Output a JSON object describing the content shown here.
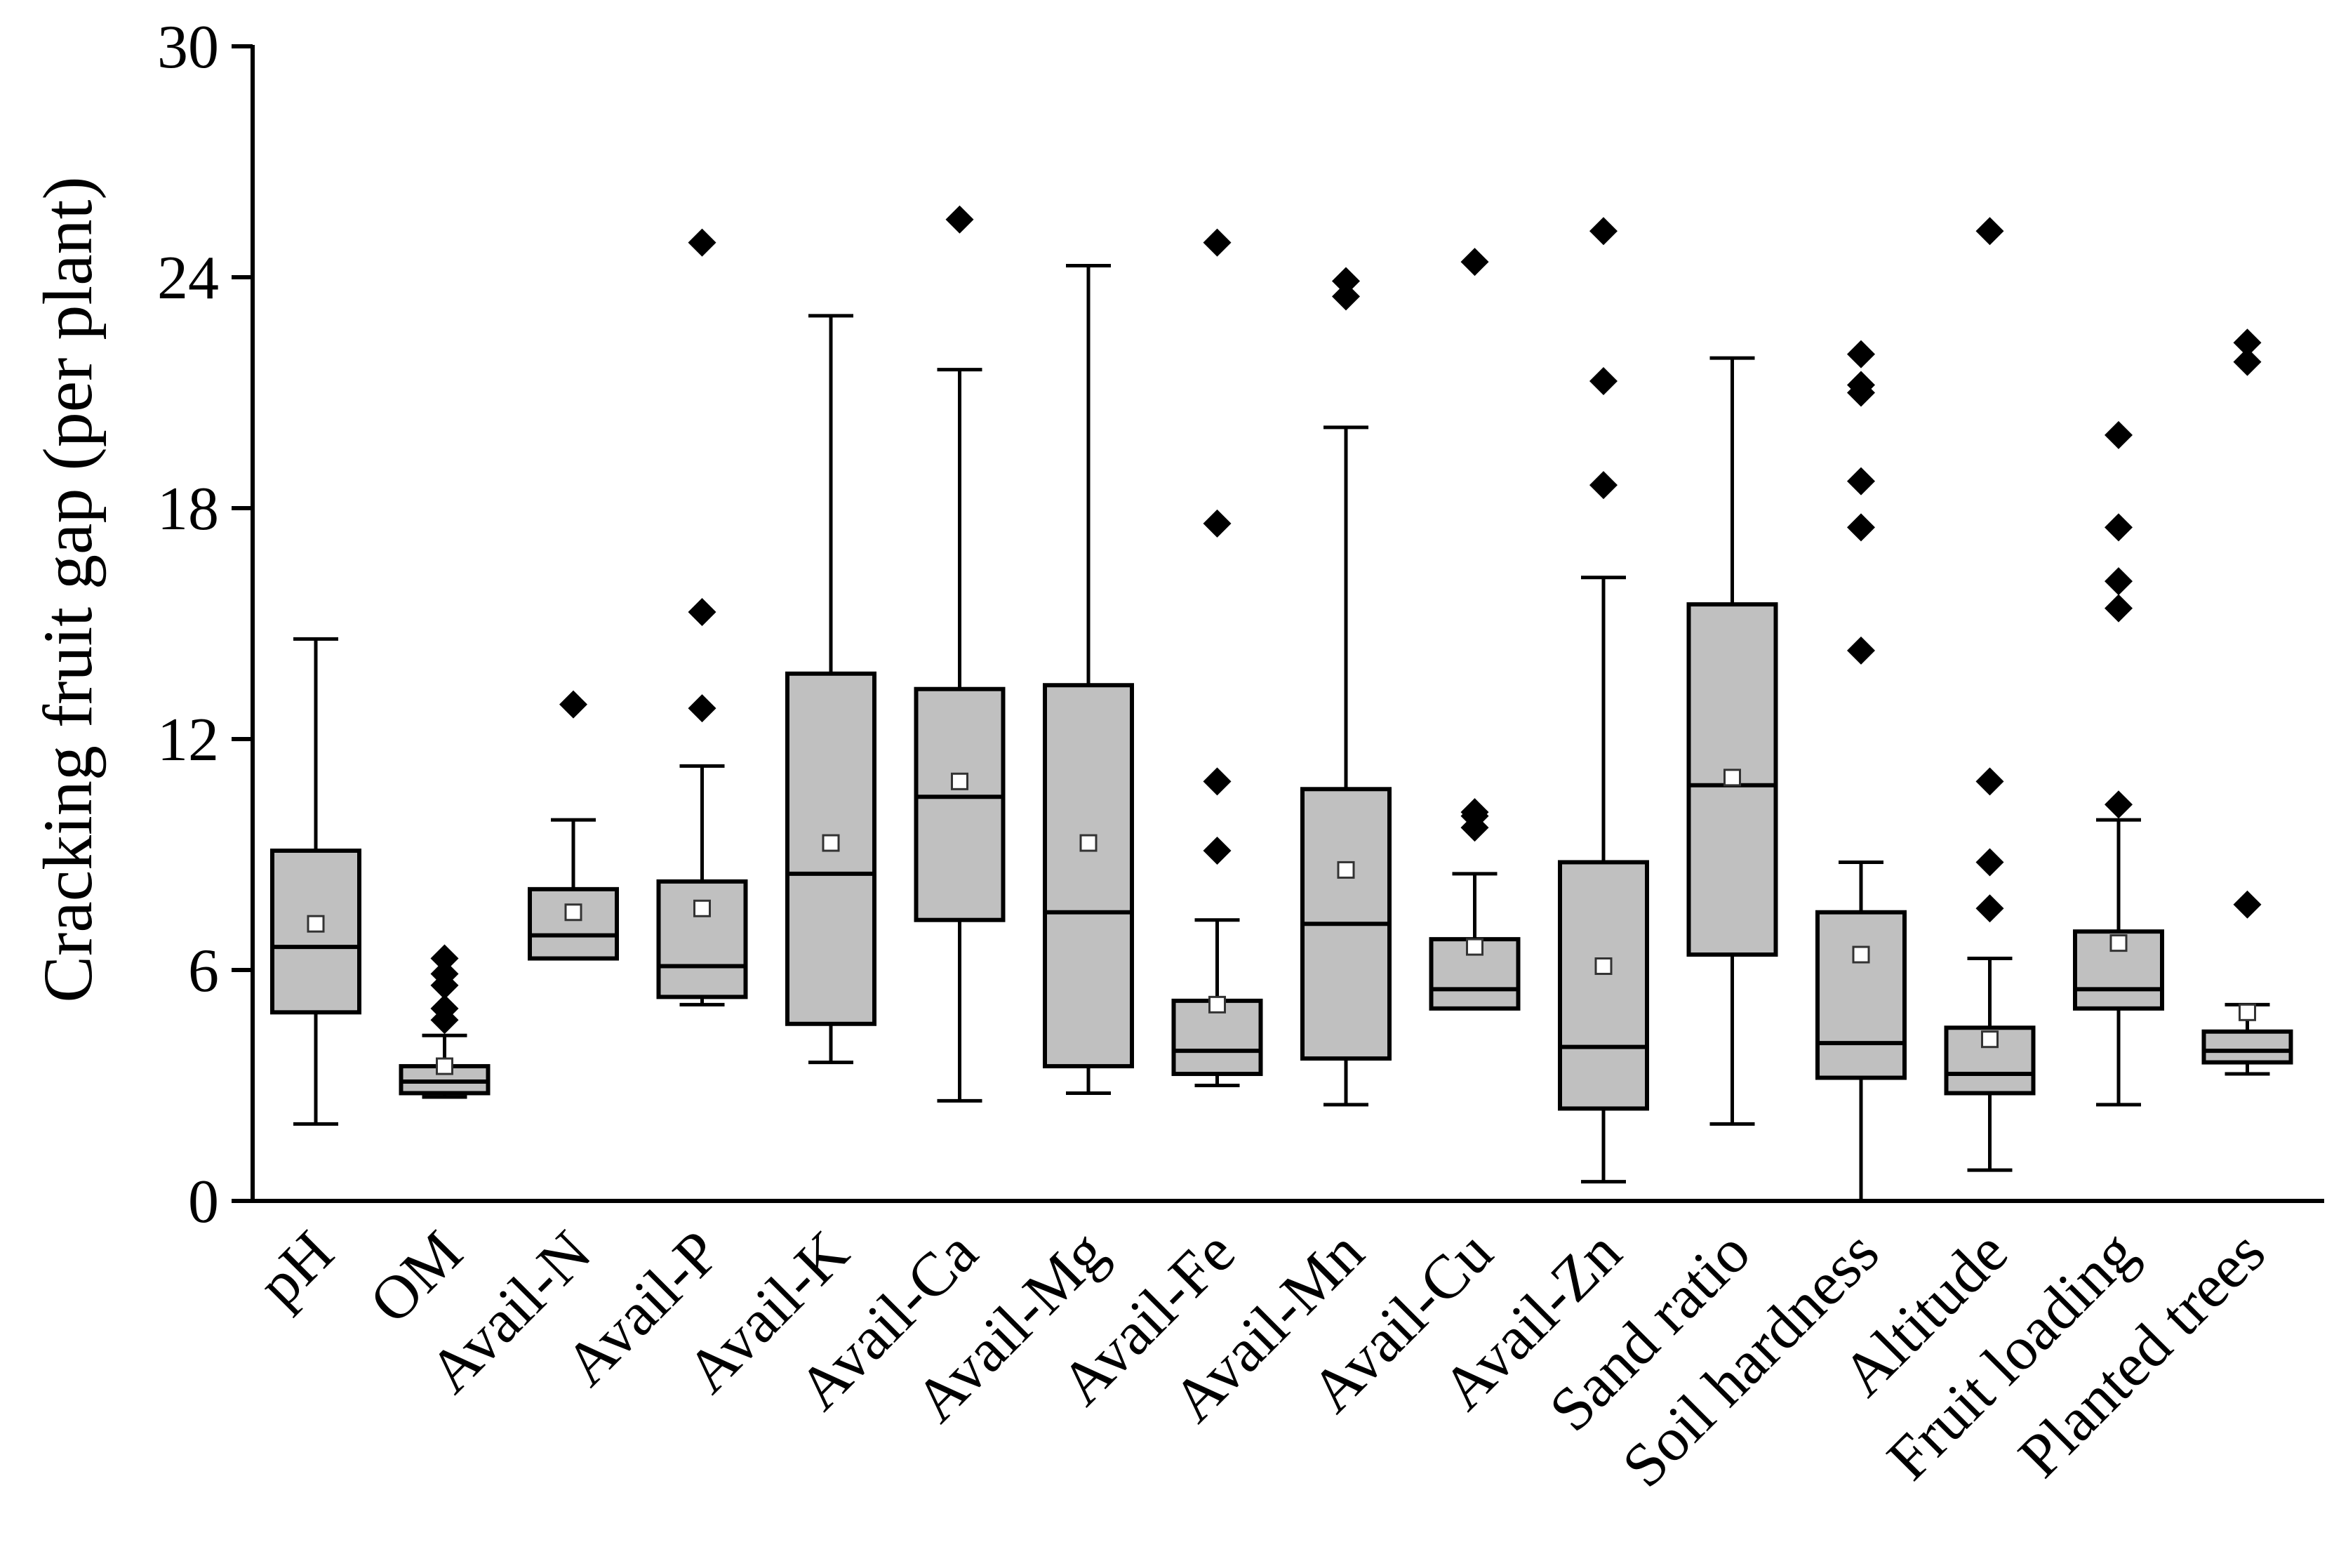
{
  "chart_data": {
    "type": "boxplot",
    "title": "",
    "xlabel": "",
    "ylabel": "Cracking fruit gap (per plant)",
    "ylim": [
      0,
      30
    ],
    "yticks": [
      0,
      6,
      12,
      18,
      24,
      30
    ],
    "grid": false,
    "colors": {
      "box_fill": "#c0c0c0",
      "stroke": "#000000",
      "mean_marker": "#ffffff"
    },
    "categories": [
      "pH",
      "OM",
      "Avail-N",
      "Avail-P",
      "Avail-K",
      "Avail-Ca",
      "Avail-Mg",
      "Avail-Fe",
      "Avail-Mn",
      "Avail-Cu",
      "Avail-Zn",
      "Sand ratio",
      "Soil hardness",
      "Altitude",
      "Fruit loading",
      "Planted trees"
    ],
    "boxes": [
      {
        "label": "pH",
        "min": 2.0,
        "q1": 4.9,
        "median": 6.6,
        "q3": 9.1,
        "max": 14.6,
        "mean": 7.2,
        "outliers": []
      },
      {
        "label": "OM",
        "min": 2.7,
        "q1": 2.8,
        "median": 3.1,
        "q3": 3.5,
        "max": 4.3,
        "mean": 3.5,
        "outliers": [
          4.7,
          5.0,
          5.6,
          5.9,
          6.3
        ]
      },
      {
        "label": "Avail-N",
        "min": 6.3,
        "q1": 6.3,
        "median": 6.9,
        "q3": 8.1,
        "max": 9.9,
        "mean": 7.5,
        "outliers": [
          12.9
        ]
      },
      {
        "label": "Avail-P",
        "min": 5.1,
        "q1": 5.3,
        "median": 6.1,
        "q3": 8.3,
        "max": 11.3,
        "mean": 7.6,
        "outliers": [
          12.8,
          15.3,
          24.9
        ]
      },
      {
        "label": "Avail-K",
        "min": 3.6,
        "q1": 4.6,
        "median": 8.5,
        "q3": 13.7,
        "max": 23.0,
        "mean": 9.3,
        "outliers": []
      },
      {
        "label": "Avail-Ca",
        "min": 2.6,
        "q1": 7.3,
        "median": 10.5,
        "q3": 13.3,
        "max": 21.6,
        "mean": 10.9,
        "outliers": [
          25.5
        ]
      },
      {
        "label": "Avail-Mg",
        "min": 2.8,
        "q1": 3.5,
        "median": 7.5,
        "q3": 13.4,
        "max": 24.3,
        "mean": 9.3,
        "outliers": []
      },
      {
        "label": "Avail-Fe",
        "min": 3.0,
        "q1": 3.3,
        "median": 3.9,
        "q3": 5.2,
        "max": 7.3,
        "mean": 5.1,
        "outliers": [
          9.1,
          10.9,
          17.6,
          24.9
        ]
      },
      {
        "label": "Avail-Mn",
        "min": 2.5,
        "q1": 3.7,
        "median": 7.2,
        "q3": 10.7,
        "max": 20.1,
        "mean": 8.6,
        "outliers": [
          23.5,
          23.9
        ]
      },
      {
        "label": "Avail-Cu",
        "min": 5.0,
        "q1": 5.0,
        "median": 5.5,
        "q3": 6.8,
        "max": 8.5,
        "mean": 6.6,
        "outliers": [
          9.7,
          10.0,
          10.1,
          24.4
        ]
      },
      {
        "label": "Avail-Zn",
        "min": 0.5,
        "q1": 2.4,
        "median": 4.0,
        "q3": 8.8,
        "max": 16.2,
        "mean": 6.1,
        "outliers": [
          18.6,
          21.3,
          25.2
        ]
      },
      {
        "label": "Sand ratio",
        "min": 2.0,
        "q1": 6.4,
        "median": 10.8,
        "q3": 15.5,
        "max": 21.9,
        "mean": 11.0,
        "outliers": []
      },
      {
        "label": "Soil hardness",
        "min": 0.0,
        "q1": 3.2,
        "median": 4.1,
        "q3": 7.5,
        "max": 8.8,
        "mean": 6.4,
        "outliers": [
          14.3,
          17.5,
          18.7,
          21.0,
          21.2,
          22.0
        ]
      },
      {
        "label": "Altitude",
        "min": 0.8,
        "q1": 2.8,
        "median": 3.3,
        "q3": 4.5,
        "max": 6.3,
        "mean": 4.2,
        "outliers": [
          7.6,
          8.8,
          10.9,
          25.2
        ]
      },
      {
        "label": "Fruit loading",
        "min": 2.5,
        "q1": 5.0,
        "median": 5.5,
        "q3": 7.0,
        "max": 9.9,
        "mean": 6.7,
        "outliers": [
          10.3,
          15.4,
          16.1,
          17.5,
          19.9
        ]
      },
      {
        "label": "Planted trees",
        "min": 3.3,
        "q1": 3.6,
        "median": 3.9,
        "q3": 4.4,
        "max": 5.1,
        "mean": 4.9,
        "outliers": [
          7.7,
          21.8,
          22.3
        ]
      }
    ]
  }
}
